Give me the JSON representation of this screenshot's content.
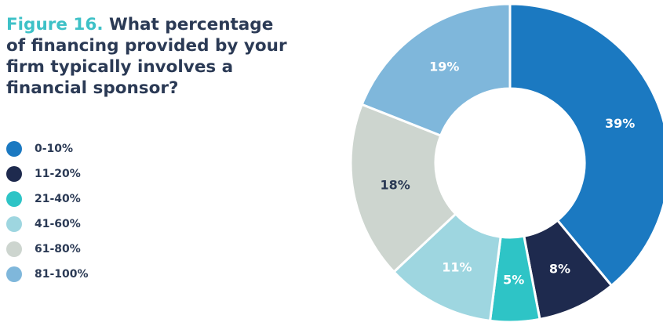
{
  "title": {
    "figure_label": "Figure 16.",
    "question": "What percentage of financing provided by your firm typically involves a financial sponsor?"
  },
  "chart_data": {
    "type": "pie",
    "donut": true,
    "title": "What percentage of financing provided by your firm typically involves a financial sponsor?",
    "legend_placement": "left",
    "categories": [
      "0-10%",
      "11-20%",
      "21-40%",
      "41-60%",
      "61-80%",
      "81-100%"
    ],
    "values": [
      39,
      8,
      5,
      11,
      18,
      19
    ],
    "data_labels": [
      "39%",
      "8%",
      "5%",
      "11%",
      "18%",
      "19%"
    ],
    "colors": [
      "#1b79c1",
      "#1e2a4e",
      "#2ec4c6",
      "#9ed6e0",
      "#cdd5cf",
      "#7fb7db"
    ],
    "label_colors": [
      "#ffffff",
      "#ffffff",
      "#ffffff",
      "#ffffff",
      "#2b3a55",
      "#ffffff"
    ]
  }
}
